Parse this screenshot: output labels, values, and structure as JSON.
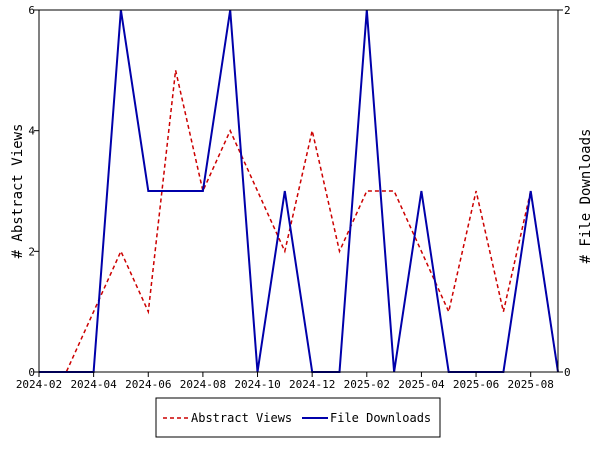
{
  "chart_data": {
    "type": "line",
    "title": "",
    "xlabel": "",
    "ylabel_left": "# Abstract Views",
    "ylabel_right": "# File Downloads",
    "x": [
      "2024-02",
      "2024-03",
      "2024-04",
      "2024-05",
      "2024-06",
      "2024-07",
      "2024-08",
      "2024-09",
      "2024-10",
      "2024-11",
      "2024-12",
      "2025-01",
      "2025-02",
      "2025-03",
      "2025-04",
      "2025-05",
      "2025-06",
      "2025-07",
      "2025-08",
      "2025-09"
    ],
    "x_tick_labels": [
      "2024-02",
      "2024-04",
      "2024-06",
      "2024-08",
      "2024-10",
      "2024-12",
      "2025-02",
      "2025-04",
      "2025-06",
      "2025-08"
    ],
    "ylim_left": [
      0,
      6
    ],
    "ylim_right": [
      0,
      2
    ],
    "left_ticks": [
      "0",
      "2",
      "4",
      "6"
    ],
    "right_ticks": [
      "0",
      "2"
    ],
    "grid": false,
    "legend_position": "bottom",
    "series": [
      {
        "name": "Abstract Views",
        "axis": "left",
        "style": "dashed",
        "color": "#cc0000",
        "values": [
          0,
          0,
          1,
          2,
          1,
          5,
          3,
          4,
          3,
          2,
          4,
          2,
          3,
          3,
          2,
          1,
          3,
          1,
          3,
          0
        ]
      },
      {
        "name": "File Downloads",
        "axis": "right",
        "style": "solid",
        "color": "#0000aa",
        "values": [
          0,
          0,
          0,
          2,
          1,
          1,
          1,
          2,
          0,
          1,
          0,
          0,
          2,
          0,
          1,
          0,
          0,
          0,
          1,
          0
        ]
      }
    ]
  }
}
